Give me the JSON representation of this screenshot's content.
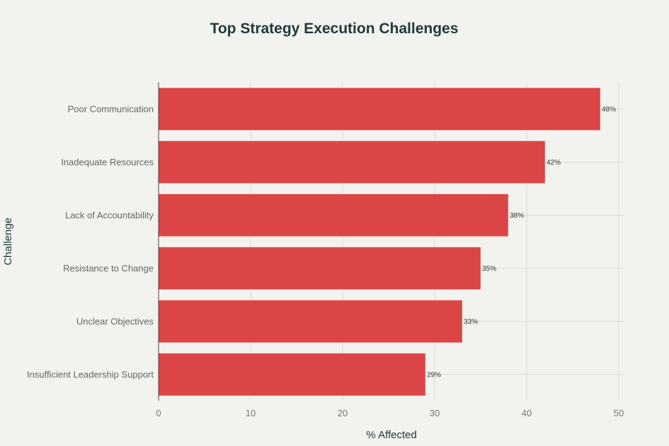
{
  "chart_data": {
    "type": "bar",
    "orientation": "horizontal",
    "title": "Top Strategy Execution Challenges",
    "xlabel": "% Affected",
    "ylabel": "Challenge",
    "categories": [
      "Poor Communication",
      "Inadequate Resources",
      "Lack of Accountability",
      "Resistance to Change",
      "Unclear Objectives",
      "Insufficient Leadership Support"
    ],
    "values": [
      48,
      42,
      38,
      35,
      33,
      29
    ],
    "data_labels": [
      "48%",
      "42%",
      "38%",
      "35%",
      "33%",
      "29%"
    ],
    "xlim": [
      0,
      50
    ],
    "xticks": [
      0,
      10,
      20,
      30,
      40,
      50
    ],
    "grid": true,
    "bar_color": "#db4545"
  }
}
